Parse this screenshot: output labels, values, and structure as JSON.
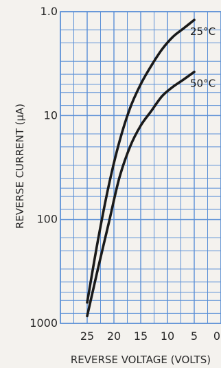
{
  "chart_data": {
    "type": "line",
    "title": "",
    "xlabel": "REVERSE VOLTAGE (VOLTS)",
    "ylabel": "REVERSE CURRENT (μA)",
    "x_tick_labels": [
      "25",
      "20",
      "15",
      "10",
      "5",
      "0"
    ],
    "x_ticks": [
      25,
      20,
      15,
      10,
      5,
      0
    ],
    "xlim": [
      30,
      0
    ],
    "x_reversed": true,
    "y_tick_labels": [
      "1.0",
      "10",
      "100",
      "1000"
    ],
    "y_ticks": [
      1,
      10,
      100,
      1000
    ],
    "ylim": [
      1,
      1000
    ],
    "y_scale": "log",
    "y_reversed": true,
    "grid": true,
    "colors": {
      "grid": "#5a8fd6",
      "curve": "#1a1a1a",
      "text": "#2a2a2a",
      "background": "#f4f2ee"
    },
    "series": [
      {
        "name": "25°C",
        "x": [
          25,
          23,
          21,
          19,
          17,
          15,
          13,
          11,
          9,
          7,
          5
        ],
        "y": [
          630,
          160,
          48,
          18,
          8.5,
          5,
          3.3,
          2.3,
          1.75,
          1.45,
          1.2
        ]
      },
      {
        "name": "50°C",
        "x": [
          25,
          23,
          21,
          19,
          17,
          15,
          13,
          11,
          9,
          7,
          5
        ],
        "y": [
          850,
          300,
          110,
          40,
          20,
          12.5,
          9,
          6.5,
          5.3,
          4.5,
          3.8
        ]
      }
    ]
  }
}
